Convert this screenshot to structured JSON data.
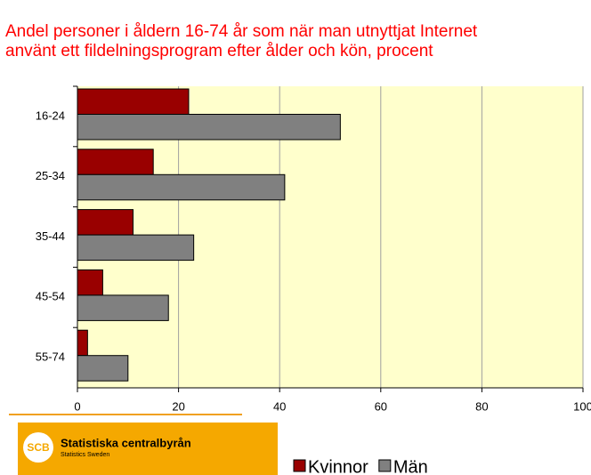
{
  "chart_data": {
    "type": "barh",
    "title": [
      "Andel personer i åldern 16-74 år som när man utnyttjat Internet",
      "använt ett fildelningsprogram efter ålder och kön, procent"
    ],
    "categories": [
      "16-24",
      "25-34",
      "35-44",
      "45-54",
      "55-74"
    ],
    "series": [
      {
        "name": "Kvinnor",
        "color": "#990000",
        "values": [
          22,
          15,
          11,
          5,
          2
        ]
      },
      {
        "name": "Män",
        "color": "#808080",
        "values": [
          52,
          41,
          23,
          18,
          10
        ]
      }
    ],
    "xlim": [
      0,
      100
    ],
    "xticks": [
      0,
      20,
      40,
      60,
      80,
      100
    ],
    "grid": true,
    "legend": "bottom"
  },
  "logo": {
    "mark": "SCB",
    "name": "Statistiska centralbyrån",
    "subtitle": "Statistics Sweden"
  }
}
